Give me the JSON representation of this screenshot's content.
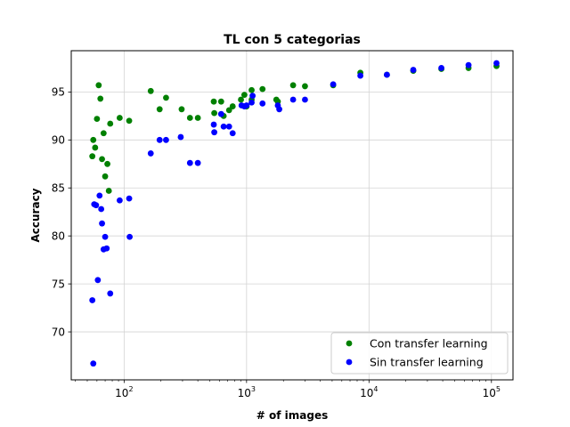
{
  "chart_data": {
    "type": "scatter",
    "title": "TL con 5 categorias",
    "xlabel": "# of images",
    "ylabel": "Accuracy",
    "xscale": "log",
    "xlim": [
      37,
      150000
    ],
    "ylim": [
      65,
      99.3
    ],
    "x_ticks": [
      {
        "value": 100,
        "base": "10",
        "exp": "2"
      },
      {
        "value": 1000,
        "base": "10",
        "exp": "3"
      },
      {
        "value": 10000,
        "base": "10",
        "exp": "4"
      },
      {
        "value": 100000,
        "base": "10",
        "exp": "5"
      }
    ],
    "y_ticks": [
      70,
      75,
      80,
      85,
      90,
      95
    ],
    "grid": true,
    "legend_position": "lower-right",
    "series": [
      {
        "name": "Con transfer learning",
        "color": "#008000",
        "points": [
          [
            55,
            88.3
          ],
          [
            56,
            90.0
          ],
          [
            58,
            89.2
          ],
          [
            60,
            92.2
          ],
          [
            62,
            95.7
          ],
          [
            64,
            94.3
          ],
          [
            66,
            88.0
          ],
          [
            68,
            90.7
          ],
          [
            70,
            86.2
          ],
          [
            73,
            87.5
          ],
          [
            75,
            84.7
          ],
          [
            77,
            91.7
          ],
          [
            92,
            92.3
          ],
          [
            110,
            92.0
          ],
          [
            165,
            95.1
          ],
          [
            195,
            93.2
          ],
          [
            220,
            94.4
          ],
          [
            295,
            93.2
          ],
          [
            345,
            92.3
          ],
          [
            400,
            92.3
          ],
          [
            540,
            94.0
          ],
          [
            545,
            92.8
          ],
          [
            620,
            94.0
          ],
          [
            650,
            92.5
          ],
          [
            720,
            93.1
          ],
          [
            770,
            93.5
          ],
          [
            900,
            94.2
          ],
          [
            960,
            94.7
          ],
          [
            1000,
            93.5
          ],
          [
            1100,
            95.2
          ],
          [
            1100,
            94.2
          ],
          [
            1350,
            95.3
          ],
          [
            1750,
            94.2
          ],
          [
            1800,
            94.0
          ],
          [
            2400,
            95.7
          ],
          [
            3000,
            95.6
          ],
          [
            5100,
            95.7
          ],
          [
            8500,
            97.0
          ],
          [
            14000,
            96.8
          ],
          [
            23000,
            97.2
          ],
          [
            39000,
            97.4
          ],
          [
            65000,
            97.5
          ],
          [
            110000,
            97.7
          ]
        ]
      },
      {
        "name": "Sin transfer learning",
        "color": "#0000ff",
        "points": [
          [
            55,
            73.3
          ],
          [
            56,
            66.7
          ],
          [
            57,
            83.3
          ],
          [
            59,
            83.2
          ],
          [
            61,
            75.4
          ],
          [
            63,
            84.2
          ],
          [
            65,
            82.8
          ],
          [
            66,
            81.3
          ],
          [
            68,
            78.6
          ],
          [
            70,
            79.9
          ],
          [
            72,
            78.7
          ],
          [
            77,
            74.0
          ],
          [
            92,
            83.7
          ],
          [
            110,
            83.9
          ],
          [
            111,
            79.9
          ],
          [
            165,
            88.6
          ],
          [
            195,
            90.0
          ],
          [
            220,
            90.0
          ],
          [
            290,
            90.3
          ],
          [
            345,
            87.6
          ],
          [
            400,
            87.6
          ],
          [
            540,
            91.6
          ],
          [
            545,
            90.8
          ],
          [
            620,
            92.7
          ],
          [
            650,
            91.4
          ],
          [
            720,
            91.4
          ],
          [
            770,
            90.7
          ],
          [
            910,
            93.6
          ],
          [
            960,
            93.5
          ],
          [
            1000,
            93.6
          ],
          [
            1100,
            93.9
          ],
          [
            1120,
            94.6
          ],
          [
            1350,
            93.8
          ],
          [
            1800,
            93.6
          ],
          [
            1850,
            93.2
          ],
          [
            2400,
            94.2
          ],
          [
            3000,
            94.2
          ],
          [
            5100,
            95.8
          ],
          [
            8500,
            96.7
          ],
          [
            14000,
            96.8
          ],
          [
            23000,
            97.3
          ],
          [
            39000,
            97.5
          ],
          [
            65000,
            97.8
          ],
          [
            110000,
            98.0
          ]
        ]
      }
    ]
  }
}
